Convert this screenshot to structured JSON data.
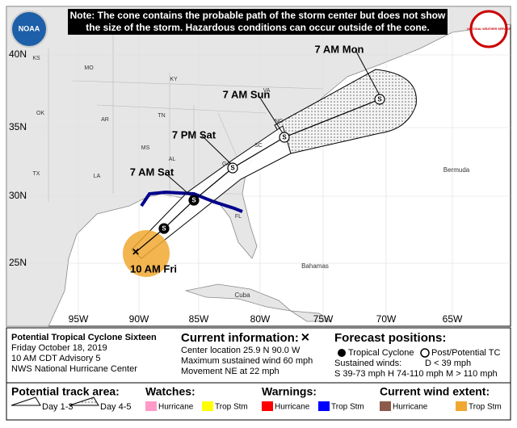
{
  "note": "Note: The cone contains the probable path of the storm center but does not show the size of the storm. Hazardous conditions can occur outside of the cone.",
  "logos": {
    "left": "NOAA",
    "right": "NATIONAL WEATHER SERVICE"
  },
  "map": {
    "lat_labels": [
      "40N",
      "35N",
      "30N",
      "25N"
    ],
    "lon_labels": [
      "95W",
      "90W",
      "85W",
      "80W",
      "75W",
      "70W",
      "65W"
    ],
    "places": [
      "KS",
      "MO",
      "KY",
      "VA",
      "OK",
      "AR",
      "TN",
      "NC",
      "SC",
      "MS",
      "AL",
      "GA",
      "TX",
      "LA",
      "FL",
      "Bermuda",
      "Bahamas",
      "Cuba"
    ],
    "forecast_labels": [
      "7 AM Mon",
      "7 AM Sun",
      "7 PM Sat",
      "7 AM Sat",
      "10 AM Fri"
    ],
    "markers": [
      "S",
      "S",
      "S",
      "S",
      "S"
    ]
  },
  "info": {
    "storm": "Potential Tropical Cyclone Sixteen",
    "date": "Friday October 18, 2019",
    "advisory": "10 AM CDT Advisory 5",
    "center": "NWS National Hurricane Center",
    "current_title": "Current information:",
    "current_symbol": "✕",
    "location": "Center location 25.9 N 90.0 W",
    "wind": "Maximum sustained wind 60 mph",
    "movement": "Movement NE at 22 mph",
    "forecast_title": "Forecast positions:",
    "tc": "Tropical Cyclone",
    "ptc": "Post/Potential TC",
    "sustained": "Sustained winds:",
    "d": "D < 39 mph",
    "scale": "S 39-73 mph  H 74-110 mph  M > 110 mph"
  },
  "legend": {
    "track_title": "Potential track area:",
    "day13": "Day 1-3",
    "day45": "Day 4-5",
    "watches_title": "Watches:",
    "watch_hurricane": "Hurricane",
    "watch_ts": "Trop Stm",
    "warnings_title": "Warnings:",
    "warn_hurricane": "Hurricane",
    "warn_ts": "Trop Stm",
    "wind_title": "Current wind extent:",
    "wind_hurricane": "Hurricane",
    "wind_ts": "Trop Stm"
  }
}
